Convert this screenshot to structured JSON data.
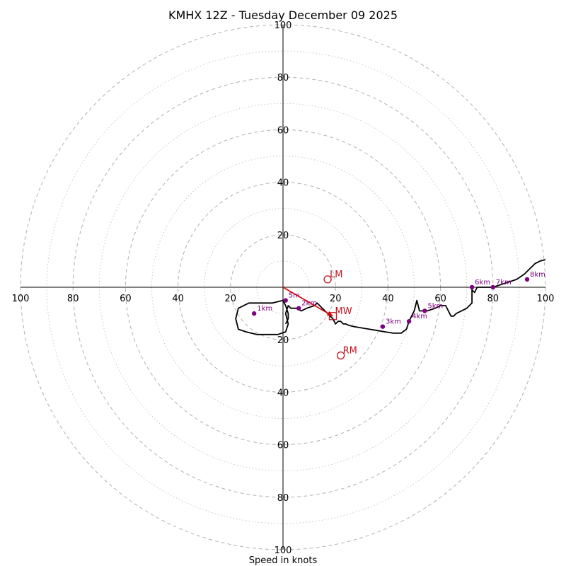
{
  "chart_data": {
    "type": "line",
    "title": "KMHX 12Z - Tuesday December 09 2025",
    "xlabel": "Speed in knots",
    "rings": [
      20,
      40,
      60,
      80,
      100
    ],
    "minor_rings": [
      10,
      30,
      50,
      70,
      90
    ],
    "range": 100,
    "ticks": [
      "20",
      "40",
      "60",
      "80",
      "100"
    ],
    "colors": {
      "hodograph": "#000000",
      "height_marker": "#800080",
      "storm_motion": "#c0141c",
      "shear_vector": "#e00000"
    },
    "hodograph": {
      "u": [
        1,
        2,
        2,
        1,
        0,
        -4,
        -8,
        -13,
        -17,
        -18,
        -17,
        -14,
        -10,
        -6,
        -2,
        1,
        2,
        1,
        2,
        3,
        5,
        7,
        9,
        12,
        13,
        15,
        17,
        19,
        20,
        21,
        22,
        23,
        24,
        25,
        27,
        30,
        33,
        36,
        39,
        42,
        45,
        47,
        48,
        50,
        51,
        52,
        53,
        55,
        58,
        60,
        62,
        64,
        65,
        66,
        68,
        70,
        72,
        72,
        73,
        74,
        77,
        79,
        80,
        83,
        86,
        89,
        92,
        94,
        96,
        98,
        100
      ],
      "v": [
        -14,
        -12,
        -10,
        -7,
        -5,
        -6,
        -6,
        -6,
        -8,
        -12,
        -16,
        -17,
        -18,
        -18,
        -18,
        -17,
        -14,
        -10,
        -7,
        -8,
        -8,
        -9,
        -8,
        -7,
        -6,
        -8,
        -10,
        -12,
        -14,
        -13,
        -13,
        -14,
        -14,
        -14.5,
        -15,
        -15.5,
        -16,
        -16.5,
        -17,
        -17.5,
        -17.5,
        -16,
        -13,
        -9,
        -5,
        -9,
        -9,
        -9,
        -8,
        -7,
        -7,
        -11,
        -11,
        -10,
        -9,
        -8,
        -6,
        -1,
        -2,
        0,
        0,
        0,
        0,
        1,
        2,
        3,
        5,
        7,
        9,
        10,
        10.5
      ]
    },
    "height_markers": [
      {
        "label": "5m",
        "u": 1,
        "v": -5
      },
      {
        "label": "1km",
        "u": -11,
        "v": -10
      },
      {
        "label": "2km",
        "u": 6,
        "v": -8
      },
      {
        "label": "3km",
        "u": 38,
        "v": -15
      },
      {
        "label": "4km",
        "u": 48,
        "v": -13
      },
      {
        "label": "5km",
        "u": 54,
        "v": -9
      },
      {
        "label": "6km",
        "u": 72,
        "v": 0
      },
      {
        "label": "7km",
        "u": 80,
        "v": 0
      },
      {
        "label": "8km",
        "u": 93,
        "v": 3
      }
    ],
    "storm_motions": [
      {
        "label": "LM",
        "u": 17,
        "v": 3,
        "marker": "circle"
      },
      {
        "label": "MW",
        "u": 19,
        "v": -11,
        "marker": "square"
      },
      {
        "label": "RM",
        "u": 22,
        "v": -26,
        "marker": "circle"
      }
    ],
    "shear_vector": {
      "from_u": 0,
      "from_v": 0,
      "to_u": 19,
      "to_v": -11
    }
  }
}
